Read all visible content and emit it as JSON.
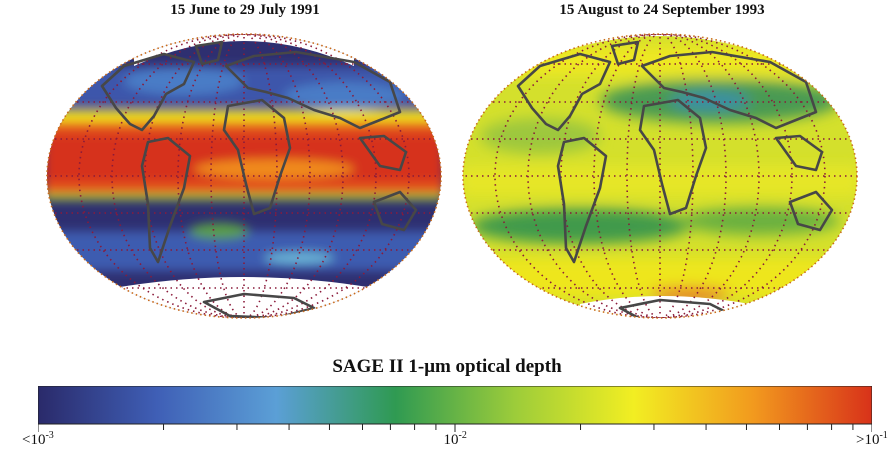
{
  "maps": [
    {
      "title": "15 June to 29 July 1991"
    },
    {
      "title": "15 August to 24 September 1993"
    }
  ],
  "colorbar": {
    "title": "SAGE II 1-μm optical depth",
    "scale": "log",
    "range": [
      0.001,
      0.1
    ],
    "labels": [
      {
        "prefix": "<",
        "base": "10",
        "exponent": "-3"
      },
      {
        "prefix": "",
        "base": "10",
        "exponent": "-2"
      },
      {
        "prefix": ">",
        "base": "10",
        "exponent": "-1"
      }
    ],
    "colors": [
      "#2a2a6a",
      "#3f5fb6",
      "#5b9fd6",
      "#2f9a52",
      "#9ccc3a",
      "#f2ee22",
      "#f29a1e",
      "#d8321a"
    ]
  },
  "legend": {
    "no-data": "#ffffff",
    "graticule": "#8a1a3a",
    "coastline": "#4a4a4a"
  }
}
